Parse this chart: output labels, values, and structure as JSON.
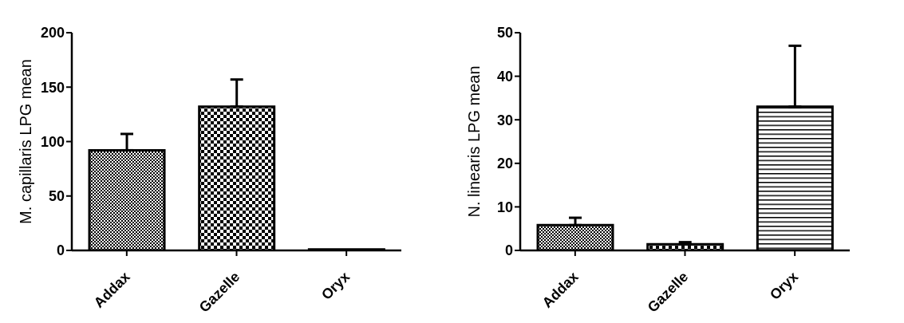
{
  "chart_data": [
    {
      "type": "bar",
      "ylabel": "M. capillaris LPG mean",
      "categories": [
        "Addax",
        "Gazelle",
        "Oryx"
      ],
      "values": [
        92,
        132,
        1
      ],
      "errors": [
        [
          92,
          107
        ],
        [
          132,
          157
        ],
        null
      ],
      "color": "#000000",
      "ylim": [
        0,
        200
      ],
      "yticks": [
        0,
        50,
        100,
        150,
        200
      ]
    },
    {
      "type": "bar",
      "ylabel": "N. linearis LPG mean",
      "categories": [
        "Addax",
        "Gazelle",
        "Oryx"
      ],
      "values": [
        5.8,
        1.4,
        33
      ],
      "errors": [
        [
          5.8,
          7.5
        ],
        [
          1.4,
          1.9
        ],
        [
          33,
          47
        ]
      ],
      "color": "#000000",
      "ylim": [
        0,
        50
      ],
      "yticks": [
        0,
        10,
        20,
        30,
        40,
        50
      ]
    }
  ]
}
